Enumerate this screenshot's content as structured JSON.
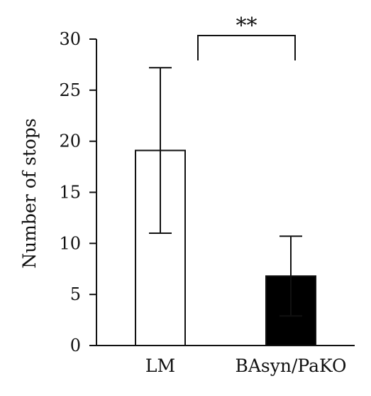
{
  "chart_data": {
    "type": "bar",
    "title": "",
    "xlabel": "",
    "ylabel": "Number of stops",
    "categories": [
      "LM",
      "BAsyn/PaKO"
    ],
    "series": [
      {
        "values": [
          19.1,
          6.8
        ],
        "errors": [
          8.1,
          3.9
        ],
        "fill_colors": [
          "#ffffff",
          "#000000"
        ]
      }
    ],
    "ylim": [
      0,
      30
    ],
    "yticks": [
      0,
      5,
      10,
      15,
      20,
      25,
      30
    ],
    "grid": false,
    "legend": "none",
    "significance": {
      "between": [
        "LM",
        "BAsyn/PaKO"
      ],
      "label": "**"
    }
  }
}
